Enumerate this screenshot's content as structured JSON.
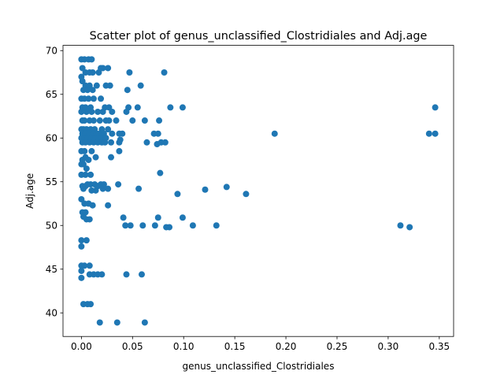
{
  "chart_data": {
    "type": "scatter",
    "title": "Scatter plot of genus_unclassified_Clostridiales and Adj.age",
    "xlabel": "genus_unclassified_Clostridiales",
    "ylabel": "Adj.age",
    "xlim": [
      -0.018,
      0.364
    ],
    "ylim": [
      37.3,
      70.6
    ],
    "x_ticks": [
      0.0,
      0.05,
      0.1,
      0.15,
      0.2,
      0.25,
      0.3,
      0.35
    ],
    "x_tick_labels": [
      "0.00",
      "0.05",
      "0.10",
      "0.15",
      "0.20",
      "0.25",
      "0.30",
      "0.35"
    ],
    "y_ticks": [
      40,
      45,
      50,
      55,
      60,
      65,
      70
    ],
    "y_tick_labels": [
      "40",
      "45",
      "50",
      "55",
      "60",
      "65",
      "70"
    ],
    "grid": false,
    "legend": "none",
    "marker_color": "#1f77b4",
    "series": [
      {
        "points": [
          [
            0.0,
            69.0
          ],
          [
            0.003,
            69.0
          ],
          [
            0.007,
            69.0
          ],
          [
            0.01,
            69.0
          ],
          [
            0.001,
            68.0
          ],
          [
            0.004,
            67.5
          ],
          [
            0.0,
            67.0
          ],
          [
            0.008,
            67.5
          ],
          [
            0.011,
            67.5
          ],
          [
            0.017,
            67.5
          ],
          [
            0.019,
            68.0
          ],
          [
            0.021,
            68.0
          ],
          [
            0.026,
            68.0
          ],
          [
            0.047,
            67.5
          ],
          [
            0.081,
            67.5
          ],
          [
            0.001,
            66.5
          ],
          [
            0.004,
            66.0
          ],
          [
            0.008,
            66.0
          ],
          [
            0.015,
            66.0
          ],
          [
            0.024,
            66.0
          ],
          [
            0.028,
            66.0
          ],
          [
            0.058,
            66.0
          ],
          [
            0.002,
            65.5
          ],
          [
            0.006,
            65.5
          ],
          [
            0.011,
            65.5
          ],
          [
            0.045,
            65.5
          ],
          [
            0.0,
            64.5
          ],
          [
            0.003,
            64.5
          ],
          [
            0.007,
            64.5
          ],
          [
            0.012,
            64.5
          ],
          [
            0.019,
            64.5
          ],
          [
            0.001,
            63.5
          ],
          [
            0.004,
            63.5
          ],
          [
            0.009,
            63.5
          ],
          [
            0.023,
            63.5
          ],
          [
            0.027,
            63.5
          ],
          [
            0.046,
            63.5
          ],
          [
            0.055,
            63.5
          ],
          [
            0.087,
            63.5
          ],
          [
            0.099,
            63.5
          ],
          [
            0.346,
            63.5
          ],
          [
            0.0,
            63.0
          ],
          [
            0.005,
            63.0
          ],
          [
            0.01,
            63.0
          ],
          [
            0.016,
            63.0
          ],
          [
            0.021,
            63.0
          ],
          [
            0.03,
            63.0
          ],
          [
            0.044,
            63.0
          ],
          [
            0.001,
            62.0
          ],
          [
            0.003,
            62.0
          ],
          [
            0.008,
            62.0
          ],
          [
            0.012,
            62.0
          ],
          [
            0.018,
            62.0
          ],
          [
            0.024,
            62.0
          ],
          [
            0.027,
            62.0
          ],
          [
            0.034,
            62.0
          ],
          [
            0.05,
            62.0
          ],
          [
            0.062,
            62.0
          ],
          [
            0.076,
            62.0
          ],
          [
            0.0,
            61.0
          ],
          [
            0.002,
            61.0
          ],
          [
            0.005,
            61.0
          ],
          [
            0.009,
            61.0
          ],
          [
            0.013,
            61.0
          ],
          [
            0.02,
            61.0
          ],
          [
            0.026,
            61.0
          ],
          [
            0.001,
            60.5
          ],
          [
            0.004,
            60.5
          ],
          [
            0.008,
            60.5
          ],
          [
            0.012,
            60.5
          ],
          [
            0.015,
            60.5
          ],
          [
            0.017,
            60.5
          ],
          [
            0.022,
            60.5
          ],
          [
            0.03,
            60.5
          ],
          [
            0.037,
            60.5
          ],
          [
            0.04,
            60.5
          ],
          [
            0.071,
            60.5
          ],
          [
            0.075,
            60.5
          ],
          [
            0.189,
            60.5
          ],
          [
            0.34,
            60.5
          ],
          [
            0.346,
            60.5
          ],
          [
            0.0,
            60.0
          ],
          [
            0.003,
            60.0
          ],
          [
            0.006,
            60.0
          ],
          [
            0.01,
            60.0
          ],
          [
            0.014,
            60.0
          ],
          [
            0.019,
            60.0
          ],
          [
            0.024,
            60.0
          ],
          [
            0.001,
            59.5
          ],
          [
            0.004,
            59.5
          ],
          [
            0.008,
            59.5
          ],
          [
            0.012,
            59.5
          ],
          [
            0.016,
            59.5
          ],
          [
            0.02,
            59.5
          ],
          [
            0.023,
            59.5
          ],
          [
            0.029,
            59.5
          ],
          [
            0.037,
            59.5
          ],
          [
            0.038,
            59.8
          ],
          [
            0.064,
            59.5
          ],
          [
            0.074,
            59.3
          ],
          [
            0.078,
            59.5
          ],
          [
            0.082,
            59.5
          ],
          [
            0.0,
            58.5
          ],
          [
            0.003,
            58.5
          ],
          [
            0.01,
            58.5
          ],
          [
            0.037,
            58.5
          ],
          [
            0.001,
            57.5
          ],
          [
            0.004,
            57.8
          ],
          [
            0.007,
            57.5
          ],
          [
            0.014,
            57.8
          ],
          [
            0.029,
            57.8
          ],
          [
            0.0,
            57.0
          ],
          [
            0.002,
            57.0
          ],
          [
            0.005,
            56.5
          ],
          [
            0.0,
            55.8
          ],
          [
            0.004,
            55.8
          ],
          [
            0.009,
            55.8
          ],
          [
            0.077,
            56.0
          ],
          [
            0.001,
            54.5
          ],
          [
            0.004,
            54.5
          ],
          [
            0.006,
            54.7
          ],
          [
            0.009,
            54.7
          ],
          [
            0.013,
            54.7
          ],
          [
            0.016,
            54.5
          ],
          [
            0.019,
            54.7
          ],
          [
            0.022,
            54.7
          ],
          [
            0.036,
            54.7
          ],
          [
            0.002,
            54.2
          ],
          [
            0.01,
            54.0
          ],
          [
            0.014,
            54.0
          ],
          [
            0.021,
            54.2
          ],
          [
            0.026,
            54.2
          ],
          [
            0.056,
            54.2
          ],
          [
            0.094,
            53.6
          ],
          [
            0.121,
            54.1
          ],
          [
            0.142,
            54.4
          ],
          [
            0.161,
            53.6
          ],
          [
            0.0,
            53.0
          ],
          [
            0.003,
            52.5
          ],
          [
            0.007,
            52.5
          ],
          [
            0.011,
            52.3
          ],
          [
            0.026,
            52.3
          ],
          [
            0.001,
            51.5
          ],
          [
            0.002,
            51.0
          ],
          [
            0.004,
            51.5
          ],
          [
            0.005,
            50.7
          ],
          [
            0.008,
            50.7
          ],
          [
            0.041,
            50.9
          ],
          [
            0.075,
            50.9
          ],
          [
            0.099,
            50.9
          ],
          [
            0.043,
            50.0
          ],
          [
            0.048,
            50.0
          ],
          [
            0.06,
            50.0
          ],
          [
            0.072,
            50.0
          ],
          [
            0.083,
            49.8
          ],
          [
            0.086,
            49.8
          ],
          [
            0.109,
            50.0
          ],
          [
            0.132,
            50.0
          ],
          [
            0.312,
            50.0
          ],
          [
            0.321,
            49.8
          ],
          [
            0.0,
            48.3
          ],
          [
            0.005,
            48.3
          ],
          [
            0.0,
            47.6
          ],
          [
            0.0,
            45.4
          ],
          [
            0.003,
            45.4
          ],
          [
            0.008,
            45.4
          ],
          [
            0.0,
            44.8
          ],
          [
            0.0,
            44.0
          ],
          [
            0.008,
            44.4
          ],
          [
            0.012,
            44.4
          ],
          [
            0.016,
            44.4
          ],
          [
            0.02,
            44.4
          ],
          [
            0.044,
            44.4
          ],
          [
            0.059,
            44.4
          ],
          [
            0.002,
            41.0
          ],
          [
            0.006,
            41.0
          ],
          [
            0.009,
            41.0
          ],
          [
            0.018,
            38.9
          ],
          [
            0.035,
            38.9
          ],
          [
            0.062,
            38.9
          ]
        ]
      }
    ]
  }
}
